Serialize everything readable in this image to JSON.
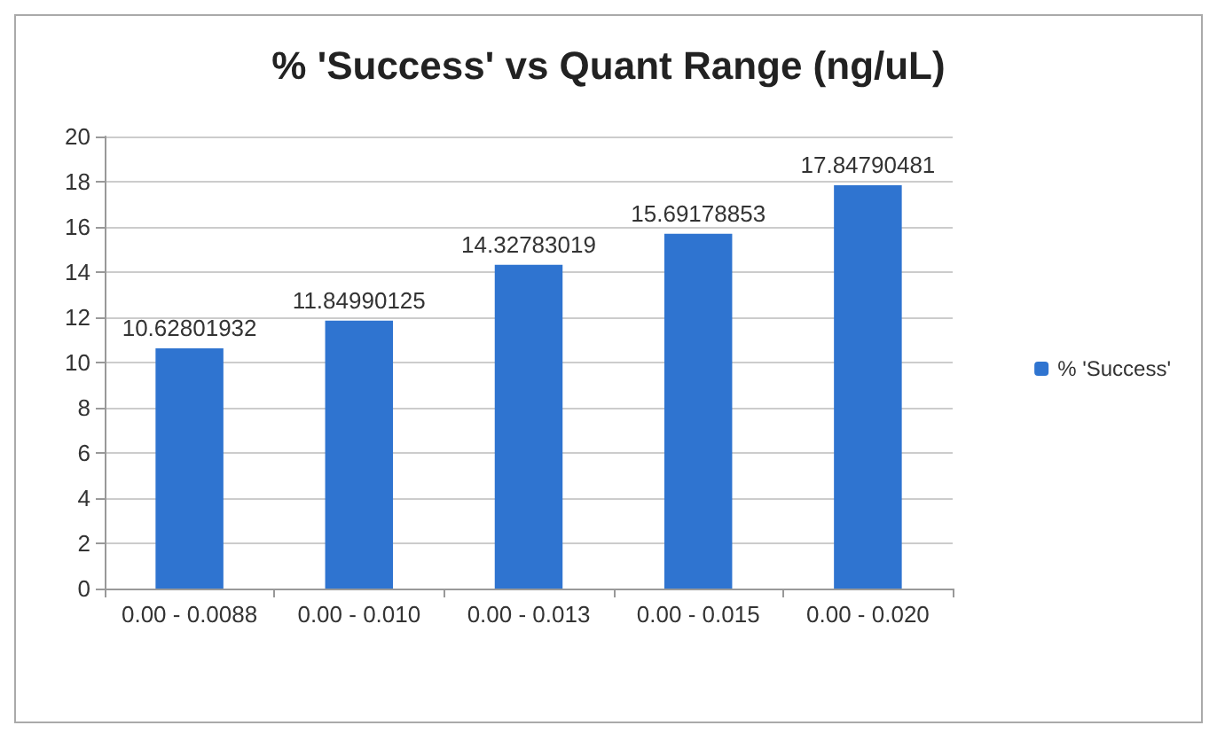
{
  "chart_data": {
    "type": "bar",
    "title": "% 'Success' vs Quant Range (ng/uL)",
    "categories": [
      "0.00 - 0.0088",
      "0.00 - 0.010",
      "0.00 - 0.013",
      "0.00 - 0.015",
      "0.00 - 0.020"
    ],
    "series": [
      {
        "name": "% 'Success'",
        "color": "#2f74d0",
        "values": [
          10.62801932,
          11.84990125,
          14.32783019,
          15.69178853,
          17.84790481
        ]
      }
    ],
    "ylim": [
      0,
      20
    ],
    "yticks": [
      0,
      2,
      4,
      6,
      8,
      10,
      12,
      14,
      16,
      18,
      20
    ],
    "grid": "y",
    "legend": "right",
    "data_labels": true
  }
}
